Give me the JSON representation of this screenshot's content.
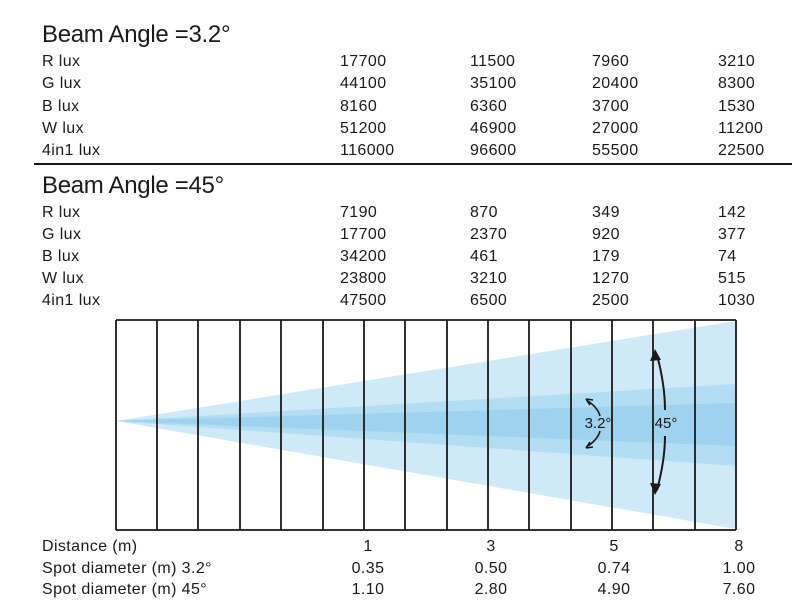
{
  "sections": [
    {
      "title": "Beam Angle =3.2°",
      "rows": [
        {
          "label": "R lux",
          "values": [
            "17700",
            "11500",
            "7960",
            "3210"
          ]
        },
        {
          "label": "G lux",
          "values": [
            "44100",
            "35100",
            "20400",
            "8300"
          ]
        },
        {
          "label": "B lux",
          "values": [
            "8160",
            "6360",
            "3700",
            "1530"
          ]
        },
        {
          "label": "W lux",
          "values": [
            "51200",
            "46900",
            "27000",
            "11200"
          ]
        },
        {
          "label": "4in1 lux",
          "values": [
            "116000",
            "96600",
            "55500",
            "22500"
          ]
        }
      ]
    },
    {
      "title": "Beam Angle =45°",
      "rows": [
        {
          "label": "R lux",
          "values": [
            "7190",
            "870",
            "349",
            "142"
          ]
        },
        {
          "label": "G lux",
          "values": [
            "17700",
            "2370",
            "920",
            "377"
          ]
        },
        {
          "label": "B lux",
          "values": [
            "34200",
            "461",
            "179",
            "74"
          ]
        },
        {
          "label": "W lux",
          "values": [
            "23800",
            "3210",
            "1270",
            "515"
          ]
        },
        {
          "label": "4in1 lux",
          "values": [
            "47500",
            "6500",
            "2500",
            "1030"
          ]
        }
      ]
    }
  ],
  "diagram": {
    "narrow_label": "3.2°",
    "wide_label": "45°",
    "colors": {
      "outer_beam": "#cfe9f8",
      "middle_beam": "#b3ddf3",
      "inner_beam": "#9fd2ee",
      "grid": "#1a1a1a"
    }
  },
  "bottom_table": {
    "rows": [
      {
        "label": "Distance (m)",
        "values": [
          "1",
          "3",
          "5",
          "8"
        ]
      },
      {
        "label": "Spot diameter (m) 3.2°",
        "values": [
          "0.35",
          "0.50",
          "0.74",
          "1.00"
        ]
      },
      {
        "label": "Spot diameter (m) 45°",
        "values": [
          "1.10",
          "2.80",
          "4.90",
          "7.60"
        ]
      }
    ]
  }
}
